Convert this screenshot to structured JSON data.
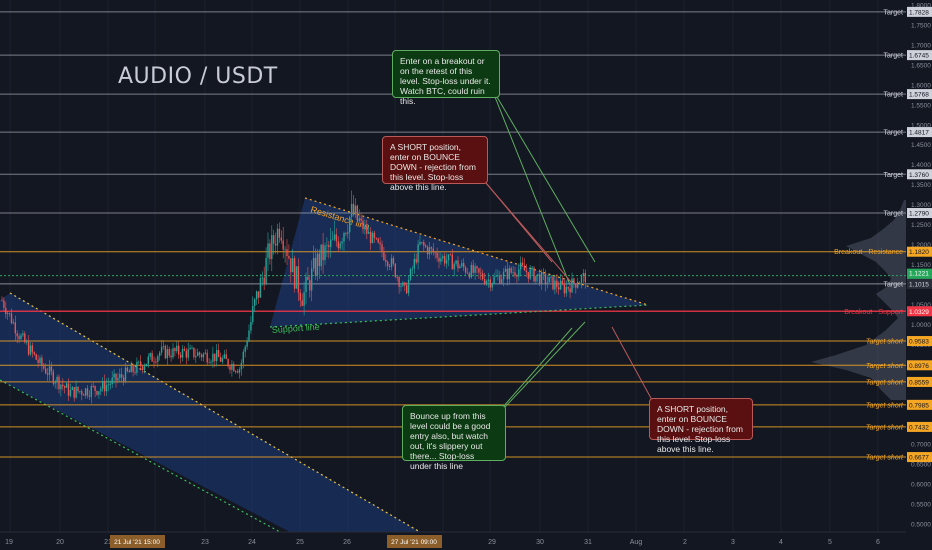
{
  "chart_title": "AUDIO / USDT",
  "chart_data": {
    "type": "candlestick",
    "title": "AUDIO / USDT",
    "y_axis": {
      "ticks": [
        "1.8000",
        "1.7500",
        "1.7000",
        "1.6500",
        "1.6000",
        "1.5500",
        "1.5000",
        "1.4500",
        "1.4000",
        "1.3500",
        "1.3000",
        "1.2500",
        "1.2000",
        "1.1500",
        "1.1000",
        "1.0500",
        "1.0000",
        "0.9500",
        "0.9000",
        "0.8500",
        "0.8000",
        "0.7500",
        "0.7000",
        "0.6500",
        "0.6000",
        "0.5500",
        "0.5000"
      ],
      "range": [
        0.48,
        1.8
      ]
    },
    "x_axis": {
      "ticks": [
        "19",
        "20",
        "21",
        "23",
        "24",
        "25",
        "26",
        "28",
        "29",
        "30",
        "31",
        "Aug",
        "2",
        "3",
        "4",
        "5",
        "6"
      ],
      "highlighted": [
        "21 Jul '21  15:00",
        "27 Jul '21  09:00"
      ]
    },
    "price_labels": [
      {
        "value": "1.1221",
        "sub": "05:43",
        "kind": "last"
      },
      {
        "value": "1.1015",
        "kind": "neutral"
      },
      {
        "value": "1.0329",
        "kind": "support"
      },
      {
        "value": "1.1820",
        "kind": "resistance"
      }
    ],
    "levels": [
      {
        "price": 1.7828,
        "label": "Target",
        "value": "1.7828",
        "kind": "target"
      },
      {
        "price": 1.6745,
        "label": "Target",
        "value": "1.6745",
        "kind": "target"
      },
      {
        "price": 1.5768,
        "label": "Target",
        "value": "1.5768",
        "kind": "target"
      },
      {
        "price": 1.4817,
        "label": "Target",
        "value": "1.4817",
        "kind": "target"
      },
      {
        "price": 1.376,
        "label": "Target",
        "value": "1.3760",
        "kind": "target"
      },
      {
        "price": 1.279,
        "label": "Target",
        "value": "1.2790",
        "kind": "target"
      },
      {
        "price": 1.182,
        "label": "Breakout - Resistance",
        "value": "1.1820",
        "kind": "resistance"
      },
      {
        "price": 1.1015,
        "label": "Target",
        "value": "",
        "kind": "neutral"
      },
      {
        "price": 1.0329,
        "label": "Breakout - Support",
        "value": "1.0329",
        "kind": "support"
      },
      {
        "price": 0.9583,
        "label": "Target short",
        "value": "0.9583",
        "kind": "short"
      },
      {
        "price": 0.8976,
        "label": "Target short",
        "value": "0.8976",
        "kind": "short"
      },
      {
        "price": 0.8559,
        "label": "Target short",
        "value": "0.8559",
        "kind": "short"
      },
      {
        "price": 0.7985,
        "label": "Target short",
        "value": "0.7985",
        "kind": "short"
      },
      {
        "price": 0.7432,
        "label": "Target short",
        "value": "0.7432",
        "kind": "short"
      },
      {
        "price": 0.6677,
        "label": "Target short",
        "value": "0.6677",
        "kind": "short"
      }
    ],
    "trendline_labels": [
      "Resistance line",
      "Support line"
    ],
    "last_price": 1.1221,
    "colors": {
      "background": "#131722",
      "bull": "#26a69a",
      "bear": "#ef5350",
      "target": "#d1d4dc",
      "resistance": "#f5a623",
      "support": "#f23645",
      "short": "#f5a623",
      "triangle_fill": "#1c3a7a",
      "last_price": "#26a65b"
    }
  },
  "annotations": {
    "breakout_note": "Enter on a breakout or on the retest of this level. Stop-loss under it. Watch BTC, could ruin this.",
    "short_note_top": "A SHORT position, enter on BOUNCE DOWN - rejection from this level. Stop-loss above this line.",
    "bounce_note": "Bounce up from this level could be a good entry also, but watch out, it's slippery out there... Stop-loss under this line",
    "short_note_bottom": "A SHORT position, enter on BOUNCE DOWN - rejection from this level. Stop-loss above this line."
  }
}
